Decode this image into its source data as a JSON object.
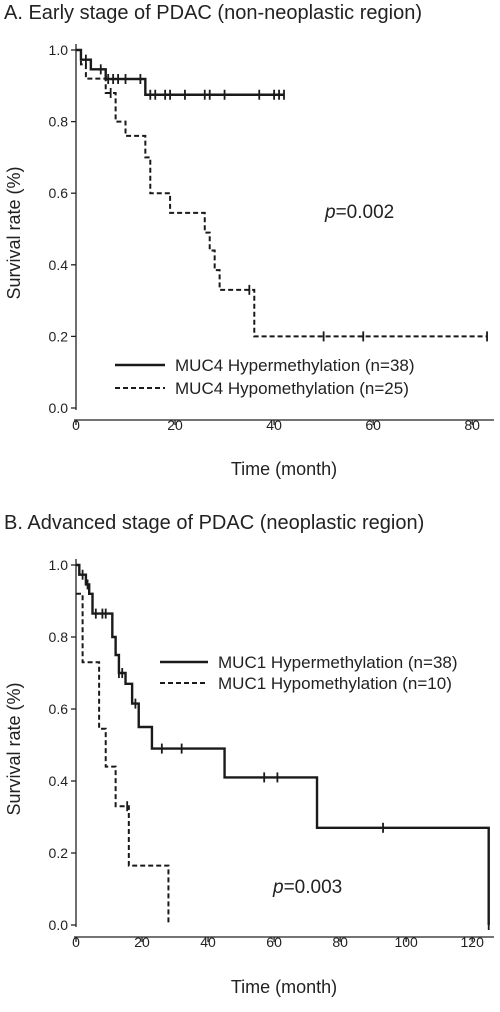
{
  "chart_data": [
    {
      "type": "line",
      "subtype": "kaplan-meier",
      "title": "A. Early stage of PDAC (non-neoplastic region)",
      "xlabel": "Time (month)",
      "ylabel": "Survival rate (%)",
      "xlim": [
        0,
        84
      ],
      "ylim": [
        0,
        1.0
      ],
      "xticks": [
        "0",
        "20",
        "40",
        "60",
        "80"
      ],
      "yticks": [
        "0.0",
        "0.2",
        "0.4",
        "0.6",
        "0.8",
        "1.0"
      ],
      "legend_position": "bottom-left",
      "annotation": {
        "p_label": "p",
        "p_value": "=0.002"
      },
      "series": [
        {
          "name": "MUC4 Hypermethylation (n=38)",
          "style": "solid",
          "steps": [
            [
              0,
              1.0
            ],
            [
              1,
              0.973
            ],
            [
              3,
              0.946
            ],
            [
              6,
              0.919
            ],
            [
              14,
              0.875
            ],
            [
              42,
              0.875
            ]
          ],
          "censored": [
            2,
            5,
            6.5,
            7.5,
            8.5,
            10,
            13,
            15,
            16,
            18,
            19,
            22,
            26,
            27,
            30,
            37,
            40,
            41,
            42
          ]
        },
        {
          "name": "MUC4 Hypomethylation (n=25)",
          "style": "dashed",
          "steps": [
            [
              0,
              1.0
            ],
            [
              1,
              0.96
            ],
            [
              2,
              0.92
            ],
            [
              6,
              0.88
            ],
            [
              8,
              0.8
            ],
            [
              10,
              0.76
            ],
            [
              14,
              0.7
            ],
            [
              15,
              0.6
            ],
            [
              19,
              0.545
            ],
            [
              26,
              0.49
            ],
            [
              27,
              0.44
            ],
            [
              28,
              0.385
            ],
            [
              29,
              0.33
            ],
            [
              36,
              0.2
            ],
            [
              83,
              0.2
            ]
          ],
          "censored": [
            7,
            35,
            50,
            58,
            83
          ]
        }
      ]
    },
    {
      "type": "line",
      "subtype": "kaplan-meier",
      "title": "B. Advanced stage of PDAC (neoplastic region)",
      "xlabel": "Time (month)",
      "ylabel": "Survival rate (%)",
      "xlim": [
        0,
        126
      ],
      "ylim": [
        0,
        1.0
      ],
      "xticks": [
        "0",
        "20",
        "40",
        "60",
        "80",
        "100",
        "120"
      ],
      "yticks": [
        "0.0",
        "0.2",
        "0.4",
        "0.6",
        "0.8",
        "1.0"
      ],
      "legend_position": "top-right",
      "annotation": {
        "p_label": "p",
        "p_value": "=0.003"
      },
      "series": [
        {
          "name": "MUC1 Hypermethylation (n=38)",
          "style": "solid",
          "steps": [
            [
              0,
              1.0
            ],
            [
              1,
              0.973
            ],
            [
              3,
              0.946
            ],
            [
              4,
              0.92
            ],
            [
              5,
              0.865
            ],
            [
              11,
              0.8
            ],
            [
              12,
              0.75
            ],
            [
              13,
              0.7
            ],
            [
              15,
              0.67
            ],
            [
              17,
              0.615
            ],
            [
              19,
              0.55
            ],
            [
              23,
              0.49
            ],
            [
              45,
              0.41
            ],
            [
              73,
              0.27
            ],
            [
              125,
              0.0
            ]
          ],
          "censored": [
            2,
            3.5,
            6,
            8,
            9,
            13,
            14,
            18,
            26,
            32,
            57,
            61,
            93,
            125
          ]
        },
        {
          "name": "MUC1 Hypomethylation (n=10)",
          "style": "dashed",
          "steps": [
            [
              0,
              0.92
            ],
            [
              2,
              0.73
            ],
            [
              7,
              0.545
            ],
            [
              9,
              0.44
            ],
            [
              12,
              0.33
            ],
            [
              16,
              0.165
            ],
            [
              28,
              0.0
            ]
          ],
          "censored": [
            15.5
          ]
        }
      ]
    }
  ]
}
